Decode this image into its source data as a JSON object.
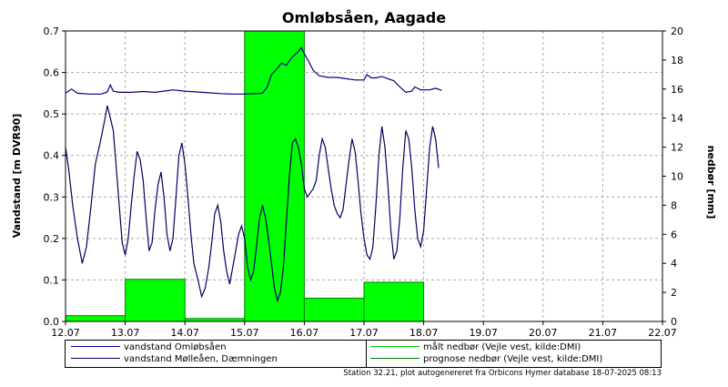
{
  "chart_data": {
    "type": "line",
    "title": "Omløbsåen, Aagade",
    "ylabel_left": "Vandstand [m DVR90]",
    "ylabel_right": "nedbør [mm]",
    "ylim_left": [
      0,
      0.7
    ],
    "ylim_right": [
      0,
      20
    ],
    "yticks_left": [
      "0.0",
      "0.1",
      "0.2",
      "0.3",
      "0.4",
      "0.5",
      "0.6",
      "0.7"
    ],
    "yticks_right": [
      "0",
      "2",
      "4",
      "6",
      "8",
      "10",
      "12",
      "14",
      "16",
      "18",
      "20"
    ],
    "xlim_days": [
      12,
      22
    ],
    "xticks": [
      "12.07",
      "13.07",
      "14.07",
      "15.07",
      "16.07",
      "17.07",
      "18.07",
      "19.07",
      "20.07",
      "21.07",
      "22.07"
    ],
    "grid": true,
    "legend_position": "bottom",
    "series": [
      {
        "name": "vandstand Omløbsåen",
        "color": "#000080",
        "axis": "left",
        "points": [
          [
            12.0,
            0.55
          ],
          [
            12.1,
            0.56
          ],
          [
            12.2,
            0.55
          ],
          [
            12.4,
            0.548
          ],
          [
            12.6,
            0.548
          ],
          [
            12.7,
            0.553
          ],
          [
            12.75,
            0.57
          ],
          [
            12.8,
            0.555
          ],
          [
            12.9,
            0.552
          ],
          [
            13.1,
            0.552
          ],
          [
            13.3,
            0.554
          ],
          [
            13.5,
            0.552
          ],
          [
            13.7,
            0.556
          ],
          [
            13.8,
            0.558
          ],
          [
            14.0,
            0.555
          ],
          [
            14.2,
            0.553
          ],
          [
            14.4,
            0.551
          ],
          [
            14.6,
            0.549
          ],
          [
            14.8,
            0.548
          ],
          [
            15.0,
            0.548
          ],
          [
            15.2,
            0.549
          ],
          [
            15.3,
            0.55
          ],
          [
            15.38,
            0.565
          ],
          [
            15.45,
            0.595
          ],
          [
            15.55,
            0.61
          ],
          [
            15.62,
            0.623
          ],
          [
            15.7,
            0.617
          ],
          [
            15.75,
            0.628
          ],
          [
            15.82,
            0.64
          ],
          [
            15.9,
            0.65
          ],
          [
            15.95,
            0.66
          ],
          [
            16.0,
            0.645
          ],
          [
            16.08,
            0.625
          ],
          [
            16.15,
            0.605
          ],
          [
            16.25,
            0.592
          ],
          [
            16.4,
            0.588
          ],
          [
            16.55,
            0.588
          ],
          [
            16.7,
            0.585
          ],
          [
            16.85,
            0.582
          ],
          [
            17.0,
            0.582
          ],
          [
            17.05,
            0.595
          ],
          [
            17.12,
            0.587
          ],
          [
            17.2,
            0.587
          ],
          [
            17.3,
            0.59
          ],
          [
            17.4,
            0.585
          ],
          [
            17.5,
            0.58
          ],
          [
            17.6,
            0.565
          ],
          [
            17.7,
            0.552
          ],
          [
            17.8,
            0.555
          ],
          [
            17.85,
            0.565
          ],
          [
            17.95,
            0.558
          ],
          [
            18.1,
            0.558
          ],
          [
            18.2,
            0.562
          ],
          [
            18.3,
            0.557
          ]
        ]
      },
      {
        "name": "vandstand Mølleåen, Dæmningen",
        "color": "#000060",
        "axis": "left",
        "points": [
          [
            12.0,
            0.42
          ],
          [
            12.05,
            0.37
          ],
          [
            12.12,
            0.28
          ],
          [
            12.2,
            0.2
          ],
          [
            12.28,
            0.14
          ],
          [
            12.35,
            0.18
          ],
          [
            12.42,
            0.27
          ],
          [
            12.5,
            0.38
          ],
          [
            12.58,
            0.43
          ],
          [
            12.65,
            0.48
          ],
          [
            12.7,
            0.52
          ],
          [
            12.75,
            0.49
          ],
          [
            12.8,
            0.46
          ],
          [
            12.85,
            0.37
          ],
          [
            12.9,
            0.28
          ],
          [
            12.95,
            0.19
          ],
          [
            13.0,
            0.16
          ],
          [
            13.05,
            0.2
          ],
          [
            13.1,
            0.28
          ],
          [
            13.15,
            0.35
          ],
          [
            13.2,
            0.41
          ],
          [
            13.25,
            0.39
          ],
          [
            13.3,
            0.34
          ],
          [
            13.35,
            0.25
          ],
          [
            13.4,
            0.17
          ],
          [
            13.45,
            0.19
          ],
          [
            13.5,
            0.27
          ],
          [
            13.55,
            0.33
          ],
          [
            13.6,
            0.36
          ],
          [
            13.65,
            0.3
          ],
          [
            13.7,
            0.21
          ],
          [
            13.75,
            0.17
          ],
          [
            13.8,
            0.2
          ],
          [
            13.85,
            0.3
          ],
          [
            13.9,
            0.4
          ],
          [
            13.95,
            0.43
          ],
          [
            14.0,
            0.38
          ],
          [
            14.05,
            0.3
          ],
          [
            14.1,
            0.21
          ],
          [
            14.15,
            0.14
          ],
          [
            14.22,
            0.1
          ],
          [
            14.28,
            0.06
          ],
          [
            14.34,
            0.08
          ],
          [
            14.4,
            0.13
          ],
          [
            14.45,
            0.19
          ],
          [
            14.5,
            0.26
          ],
          [
            14.55,
            0.28
          ],
          [
            14.6,
            0.24
          ],
          [
            14.65,
            0.17
          ],
          [
            14.7,
            0.12
          ],
          [
            14.75,
            0.09
          ],
          [
            14.8,
            0.13
          ],
          [
            14.85,
            0.17
          ],
          [
            14.9,
            0.21
          ],
          [
            14.95,
            0.23
          ],
          [
            15.0,
            0.2
          ],
          [
            15.05,
            0.13
          ],
          [
            15.1,
            0.1
          ],
          [
            15.15,
            0.12
          ],
          [
            15.2,
            0.18
          ],
          [
            15.25,
            0.25
          ],
          [
            15.3,
            0.28
          ],
          [
            15.35,
            0.25
          ],
          [
            15.4,
            0.2
          ],
          [
            15.45,
            0.14
          ],
          [
            15.5,
            0.08
          ],
          [
            15.55,
            0.05
          ],
          [
            15.6,
            0.07
          ],
          [
            15.65,
            0.13
          ],
          [
            15.7,
            0.24
          ],
          [
            15.75,
            0.35
          ],
          [
            15.8,
            0.43
          ],
          [
            15.85,
            0.44
          ],
          [
            15.9,
            0.42
          ],
          [
            15.95,
            0.38
          ],
          [
            16.0,
            0.32
          ],
          [
            16.05,
            0.3
          ],
          [
            16.1,
            0.31
          ],
          [
            16.15,
            0.32
          ],
          [
            16.2,
            0.34
          ],
          [
            16.25,
            0.4
          ],
          [
            16.3,
            0.44
          ],
          [
            16.35,
            0.42
          ],
          [
            16.4,
            0.37
          ],
          [
            16.45,
            0.32
          ],
          [
            16.5,
            0.28
          ],
          [
            16.55,
            0.26
          ],
          [
            16.6,
            0.25
          ],
          [
            16.65,
            0.27
          ],
          [
            16.7,
            0.33
          ],
          [
            16.75,
            0.39
          ],
          [
            16.8,
            0.44
          ],
          [
            16.85,
            0.41
          ],
          [
            16.9,
            0.34
          ],
          [
            16.95,
            0.26
          ],
          [
            17.0,
            0.2
          ],
          [
            17.05,
            0.16
          ],
          [
            17.1,
            0.15
          ],
          [
            17.15,
            0.18
          ],
          [
            17.2,
            0.28
          ],
          [
            17.25,
            0.4
          ],
          [
            17.3,
            0.47
          ],
          [
            17.35,
            0.42
          ],
          [
            17.4,
            0.33
          ],
          [
            17.45,
            0.22
          ],
          [
            17.5,
            0.15
          ],
          [
            17.55,
            0.17
          ],
          [
            17.6,
            0.25
          ],
          [
            17.65,
            0.37
          ],
          [
            17.7,
            0.46
          ],
          [
            17.75,
            0.44
          ],
          [
            17.8,
            0.37
          ],
          [
            17.85,
            0.27
          ],
          [
            17.9,
            0.2
          ],
          [
            17.95,
            0.18
          ],
          [
            18.0,
            0.22
          ],
          [
            18.05,
            0.32
          ],
          [
            18.1,
            0.42
          ],
          [
            18.15,
            0.47
          ],
          [
            18.2,
            0.44
          ],
          [
            18.25,
            0.37
          ]
        ]
      }
    ],
    "bars": {
      "name": "målt nedbør (Vejle vest, kilde:DMI)",
      "color": "#00ff00",
      "axis": "right",
      "data": [
        {
          "from": 12,
          "to": 13,
          "value": 0.4
        },
        {
          "from": 13,
          "to": 14,
          "value": 2.9
        },
        {
          "from": 14,
          "to": 15,
          "value": 0.2
        },
        {
          "from": 15,
          "to": 16,
          "value": 20
        },
        {
          "from": 16,
          "to": 17,
          "value": 1.6
        },
        {
          "from": 17,
          "to": 18,
          "value": 2.7
        }
      ]
    },
    "prognosis": {
      "name": "prognose nedbør (Vejle vest, kilde:DMI)",
      "color": "#008000"
    }
  },
  "legend": {
    "items": [
      {
        "label": "vandstand Omløbsåen",
        "color": "#0000a0"
      },
      {
        "label": "vandstand Mølleåen, Dæmningen",
        "color": "#000060"
      },
      {
        "label": "målt nedbør (Vejle vest, kilde:DMI)",
        "color": "#00c800"
      },
      {
        "label": "prognose nedbør (Vejle vest, kilde:DMI)",
        "color": "#008000"
      }
    ]
  },
  "footer": "Station 32.21, plot autogenereret fra Orbicons Hymer database 18-07-2025 08:13"
}
